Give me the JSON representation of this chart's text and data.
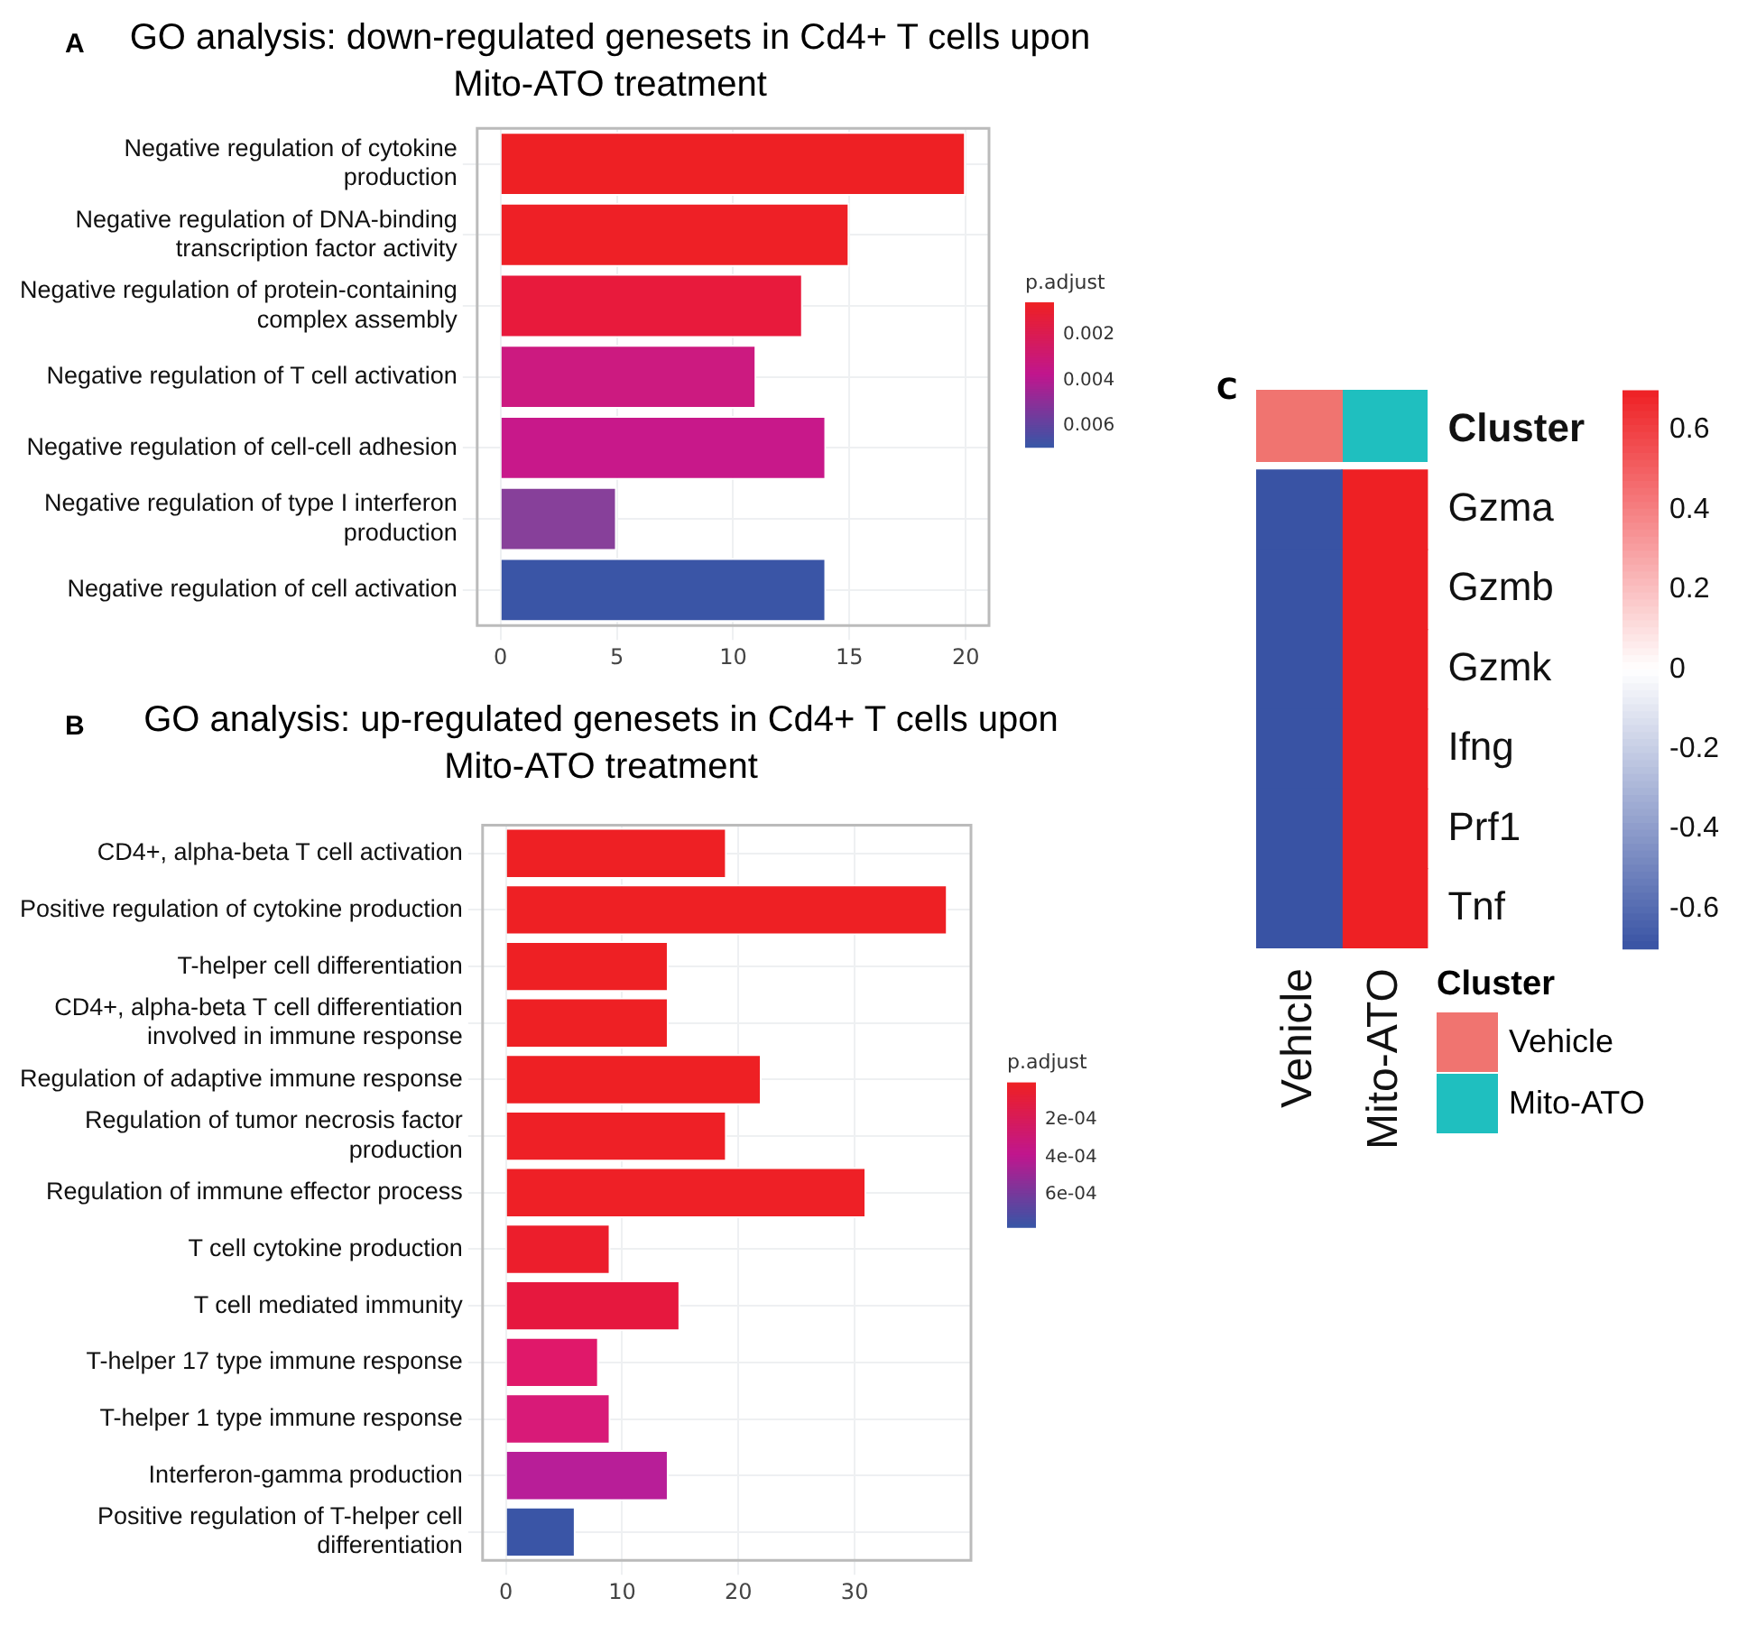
{
  "chart_data": [
    {
      "type": "bar",
      "orientation": "horizontal",
      "title": "GO analysis: down-regulated genesets in Cd4+ T cells upon Mito-ATO treatment",
      "annotations": [
        "A"
      ],
      "categories": [
        "Negative regulation of cytokine production",
        "Negative regulation of DNA-binding transcription factor activity",
        "Negative regulation of protein-containing complex assembly",
        "Negative regulation of T cell activation",
        "Negative regulation of cell-cell adhesion",
        "Negative regulation of type I interferon production",
        "Negative regulation of cell activation"
      ],
      "values": [
        20,
        15,
        13,
        11,
        14,
        5,
        14
      ],
      "colors": [
        "#ee2024",
        "#ee2026",
        "#e81a3c",
        "#cc1a80",
        "#c8188a",
        "#87409a",
        "#3a55a6"
      ],
      "xlim": [
        -1,
        21
      ],
      "xticks": [
        0,
        5,
        10,
        15,
        20
      ],
      "grid": true,
      "clabel": "p.adjust",
      "clim": [
        0.0006,
        0.0069
      ],
      "cticks": [
        0.002,
        0.004,
        0.006
      ]
    },
    {
      "type": "bar",
      "orientation": "horizontal",
      "title": "GO analysis: up-regulated genesets in Cd4+ T cells upon Mito-ATO treatment",
      "annotations": [
        "B"
      ],
      "categories": [
        "CD4+, alpha-beta T cell activation",
        "Positive regulation of cytokine production",
        "T-helper cell differentiation",
        "CD4+, alpha-beta T cell differentiation involved in immune response",
        "Regulation of adaptive immune response",
        "Regulation of tumor necrosis factor production",
        "Regulation of immune effector process",
        "T cell cytokine production",
        "T cell mediated immunity",
        "T-helper 17 type immune response",
        "T-helper 1 type immune response",
        "Interferon-gamma production",
        "Positive regulation of T-helper cell differentiation"
      ],
      "values": [
        19,
        38,
        14,
        14,
        22,
        19,
        31,
        9,
        15,
        8,
        9,
        14,
        6
      ],
      "colors": [
        "#ee2024",
        "#ee2024",
        "#ee2024",
        "#ee2024",
        "#ee2024",
        "#ee2026",
        "#ee2026",
        "#ec1e2c",
        "#e6183e",
        "#e0186a",
        "#d81a78",
        "#b81e98",
        "#3a55a6"
      ],
      "xlim": [
        -2,
        40
      ],
      "xticks": [
        0,
        10,
        20,
        30
      ],
      "grid": true,
      "clabel": "p.adjust",
      "clim": [
        0,
        0.00077
      ],
      "cticks": [
        {
          "value": 0.0002,
          "label": "2e-04"
        },
        {
          "value": 0.0004,
          "label": "4e-04"
        },
        {
          "value": 0.0006,
          "label": "6e-04"
        }
      ]
    },
    {
      "type": "heatmap",
      "annotations": [
        "C"
      ],
      "legend_title": "Cluster",
      "categories": [
        "Vehicle",
        "Mito-ATO"
      ],
      "colors": [
        "#f07470",
        "#1fbfbf"
      ],
      "y_categories": [
        "Cluster",
        "Gzma",
        "Gzmb",
        "Gzmk",
        "Ifng",
        "Prf1",
        "Tnf"
      ],
      "cells": [
        [
          null,
          null
        ],
        [
          -0.7,
          0.7
        ],
        [
          -0.7,
          0.7
        ],
        [
          -0.7,
          0.7
        ],
        [
          -0.7,
          0.7
        ],
        [
          -0.7,
          0.7
        ],
        [
          -0.7,
          0.7
        ]
      ],
      "clim": [
        -0.7,
        0.7
      ],
      "cticks": [
        0.6,
        0.4,
        0.2,
        0,
        -0.2,
        -0.4,
        -0.6
      ]
    }
  ]
}
